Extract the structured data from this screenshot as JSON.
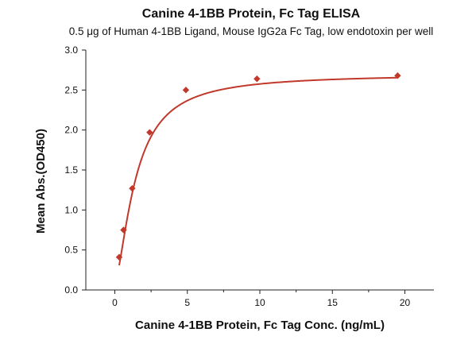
{
  "chart_data": {
    "type": "scatter",
    "title": "Canine 4-1BB Protein, Fc Tag ELISA",
    "subtitle": "0.5 μg of Human 4-1BB Ligand, Mouse IgG2a Fc Tag, low endotoxin per well",
    "xlabel": "Canine 4-1BB Protein, Fc Tag Conc. (ng/mL)",
    "ylabel": "Mean Abs.(OD450)",
    "xlim": [
      -2,
      22
    ],
    "ylim": [
      0,
      3.0
    ],
    "xticks": [
      "0",
      "5",
      "10",
      "15",
      "20"
    ],
    "yticks": [
      "0.0",
      "0.5",
      "1.0",
      "1.5",
      "2.0",
      "2.5",
      "3.0"
    ],
    "grid": false,
    "legend": "none",
    "series": [
      {
        "x": [
          0.3,
          0.6,
          1.2,
          2.4,
          4.9,
          9.8,
          19.5
        ],
        "y": [
          0.41,
          0.75,
          1.27,
          1.97,
          2.5,
          2.64,
          2.68
        ]
      }
    ],
    "fit_curve": {
      "type": "4PL",
      "bottom": 0.1,
      "top": 2.7,
      "ec50": 1.45,
      "hill": 1.55
    },
    "colors": {
      "marker": "#c0392b",
      "curve": "#c0392b",
      "axis": "#222222"
    }
  }
}
